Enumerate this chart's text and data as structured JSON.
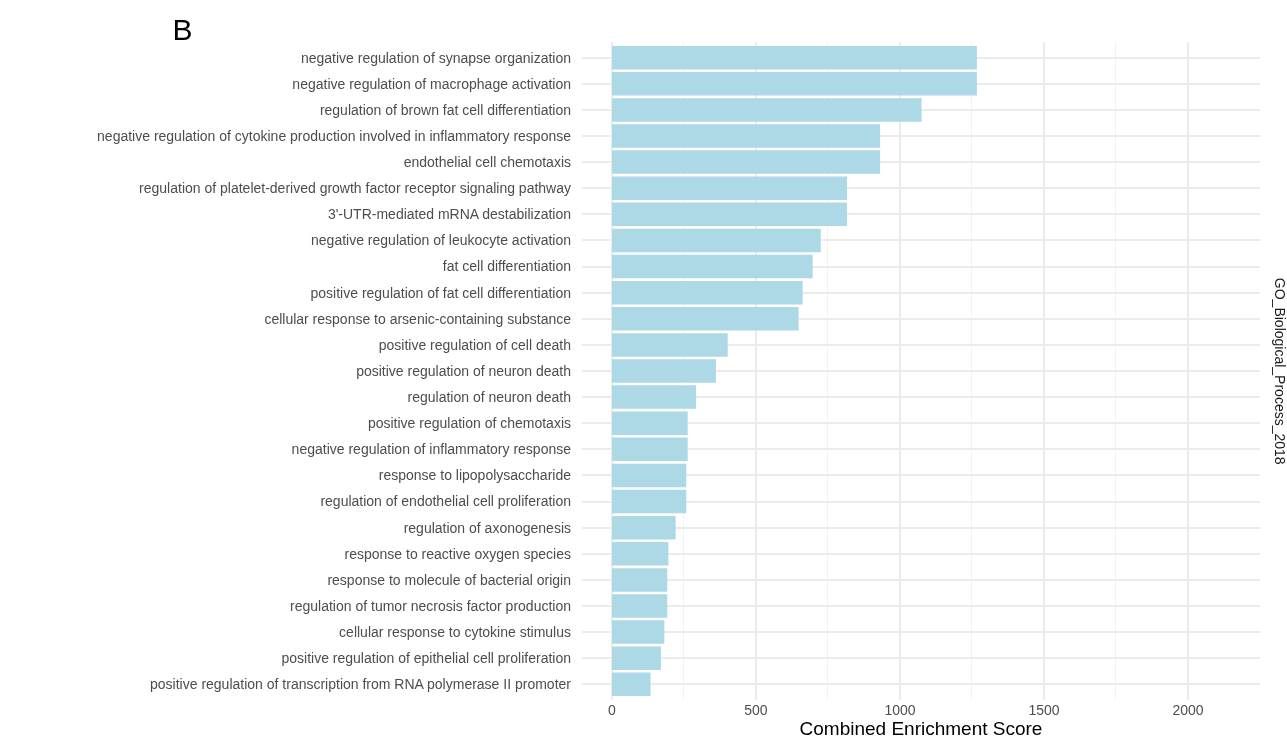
{
  "chart_data": {
    "type": "bar",
    "orientation": "horizontal",
    "title": "B",
    "xlabel": "Combined Enrichment Score",
    "annotations": [
      "GO_Biological_Process_2018"
    ],
    "categories": [
      "negative regulation of synapse organization",
      "negative regulation of macrophage activation",
      "regulation of brown fat cell differentiation",
      "negative regulation of cytokine production involved in inflammatory response",
      "endothelial cell chemotaxis",
      "regulation of platelet-derived growth factor receptor signaling pathway",
      "3'-UTR-mediated mRNA destabilization",
      "negative regulation of leukocyte activation",
      "fat cell differentiation",
      "positive regulation of fat cell differentiation",
      "cellular response to arsenic-containing substance",
      "positive regulation of cell death",
      "positive regulation of neuron death",
      "regulation of neuron death",
      "positive regulation of chemotaxis",
      "negative regulation of inflammatory response",
      "response to lipopolysaccharide",
      "regulation of endothelial cell proliferation",
      "regulation of axonogenesis",
      "response to reactive oxygen species",
      "response to molecule of bacterial origin",
      "regulation of tumor necrosis factor production",
      "cellular response to cytokine stimulus",
      "positive regulation of epithelial cell proliferation",
      "positive regulation of transcription from RNA polymerase II promoter"
    ],
    "values": [
      1267,
      1267,
      1075,
      931,
      931,
      816,
      816,
      725,
      697,
      662,
      648,
      402,
      361,
      292,
      263,
      263,
      258,
      258,
      221,
      196,
      192,
      192,
      182,
      170,
      134
    ],
    "color": "#add8e6",
    "xlim": [
      -104,
      2250
    ],
    "xticks": [
      0,
      500,
      1000,
      1500,
      2000
    ],
    "grid": true
  }
}
